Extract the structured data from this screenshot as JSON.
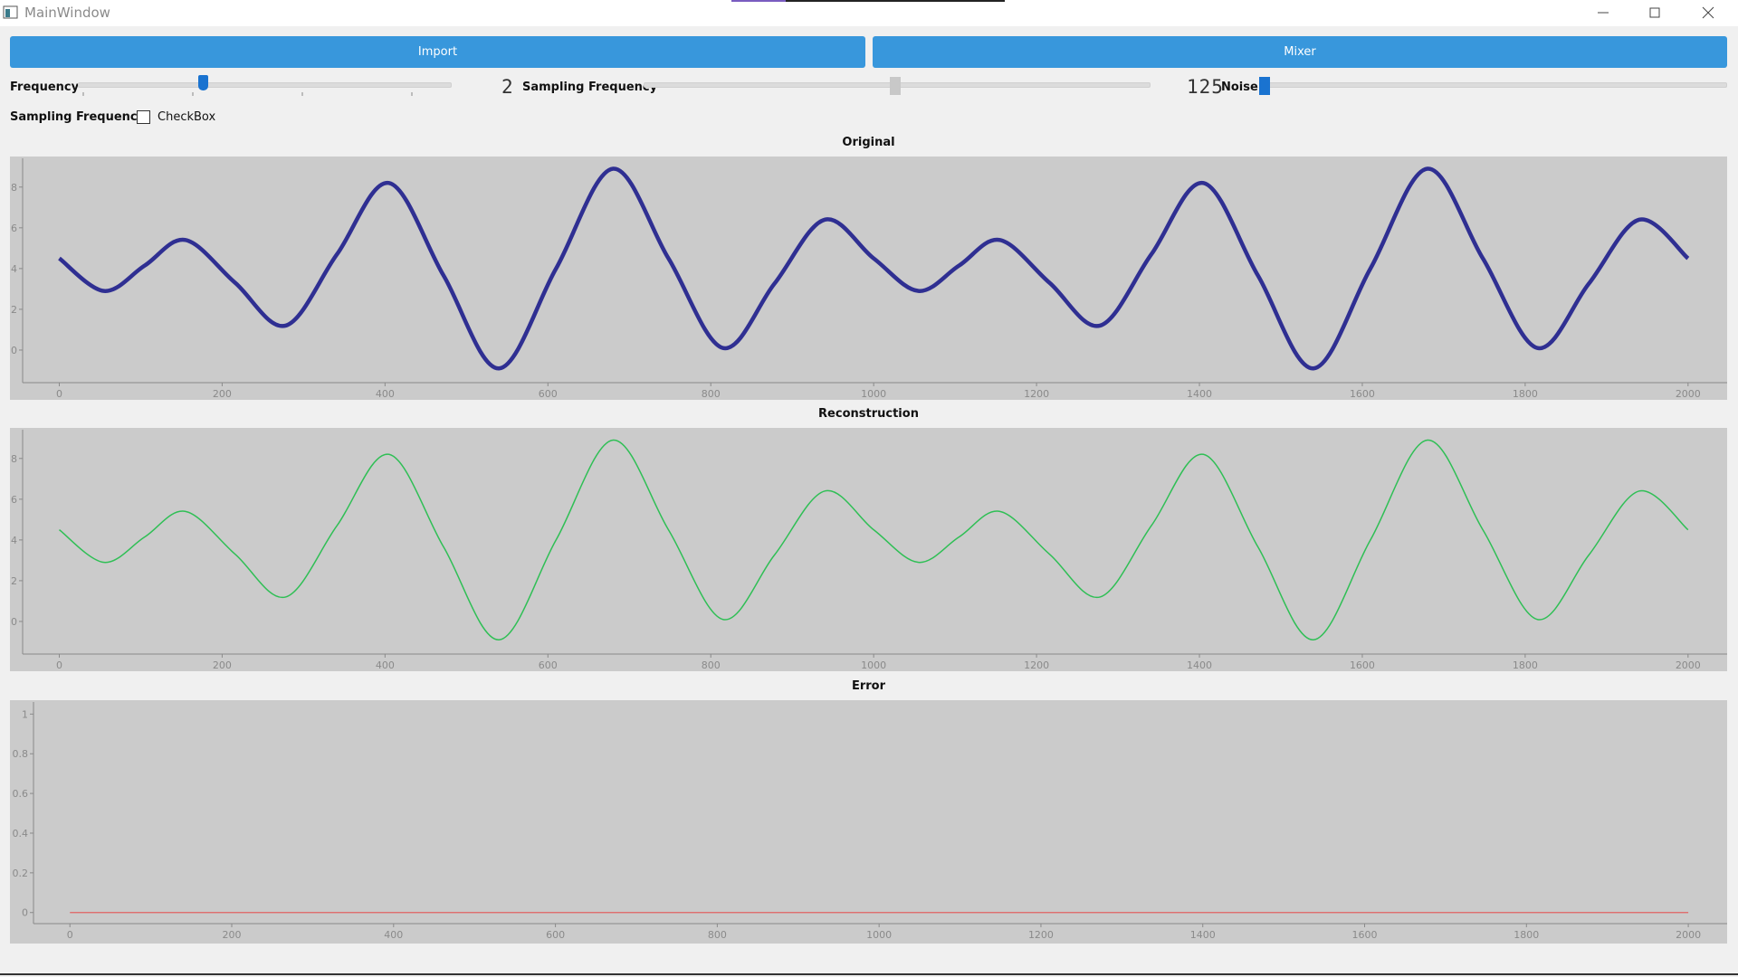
{
  "window": {
    "title": "MainWindow"
  },
  "buttons": [
    "Import",
    "Mixer"
  ],
  "controls": {
    "frequency_label": "Frequency",
    "frequency_display": "2",
    "sampling_label": "Sampling Frequency",
    "sampling_display": "125",
    "noise_label": "Noise",
    "checkbox_row_label": "Sampling Frequency",
    "checkbox_label": "CheckBox"
  },
  "chart_data": [
    {
      "type": "line",
      "title": "Original",
      "color": "#2f2f92",
      "line_width": 4.5,
      "x": [
        0,
        55,
        105,
        155,
        216,
        278,
        341,
        405,
        472,
        540,
        610,
        680,
        748,
        815,
        878,
        940,
        1000,
        1055,
        1105,
        1155,
        1216,
        1278,
        1341,
        1405,
        1472,
        1540,
        1610,
        1680,
        1748,
        1815,
        1878,
        1940,
        2000
      ],
      "values": [
        4.5,
        2.9,
        4.15,
        5.4,
        3.3,
        1.2,
        4.7,
        8.2,
        3.65,
        -0.9,
        4.0,
        8.9,
        4.5,
        0.1,
        3.25,
        6.4,
        4.5,
        2.9,
        4.15,
        5.4,
        3.3,
        1.2,
        4.7,
        8.2,
        3.65,
        -0.9,
        4.0,
        8.9,
        4.5,
        0.1,
        3.25,
        6.4,
        4.5
      ],
      "xlim": [
        -45,
        2048
      ],
      "ylim": [
        -1.6,
        9.5
      ],
      "xticks": [
        0,
        200,
        400,
        600,
        800,
        1000,
        1200,
        1400,
        1600,
        1800,
        2000
      ],
      "yticks": [
        0,
        2,
        4,
        6,
        8
      ]
    },
    {
      "type": "line",
      "title": "Reconstruction",
      "color": "#2fbf55",
      "line_width": 1.5,
      "x": [
        0,
        55,
        105,
        155,
        216,
        278,
        341,
        405,
        472,
        540,
        610,
        680,
        748,
        815,
        878,
        940,
        1000,
        1055,
        1105,
        1155,
        1216,
        1278,
        1341,
        1405,
        1472,
        1540,
        1610,
        1680,
        1748,
        1815,
        1878,
        1940,
        2000
      ],
      "values": [
        4.5,
        2.9,
        4.15,
        5.4,
        3.3,
        1.2,
        4.7,
        8.2,
        3.65,
        -0.9,
        4.0,
        8.9,
        4.5,
        0.1,
        3.25,
        6.4,
        4.5,
        2.9,
        4.15,
        5.4,
        3.3,
        1.2,
        4.7,
        8.2,
        3.65,
        -0.9,
        4.0,
        8.9,
        4.5,
        0.1,
        3.25,
        6.4,
        4.5
      ],
      "xlim": [
        -45,
        2048
      ],
      "ylim": [
        -1.6,
        9.5
      ],
      "xticks": [
        0,
        200,
        400,
        600,
        800,
        1000,
        1200,
        1400,
        1600,
        1800,
        2000
      ],
      "yticks": [
        0,
        2,
        4,
        6,
        8
      ]
    },
    {
      "type": "line",
      "title": "Error",
      "color": "#e06262",
      "line_width": 1.2,
      "x": [
        0,
        2000
      ],
      "values": [
        0,
        0
      ],
      "xlim": [
        -45,
        2048
      ],
      "ylim": [
        -0.056,
        1.07
      ],
      "xticks": [
        0,
        200,
        400,
        600,
        800,
        1000,
        1200,
        1400,
        1600,
        1800,
        2000
      ],
      "yticks": [
        0,
        0.2,
        0.4,
        0.6,
        0.8,
        1
      ]
    }
  ]
}
